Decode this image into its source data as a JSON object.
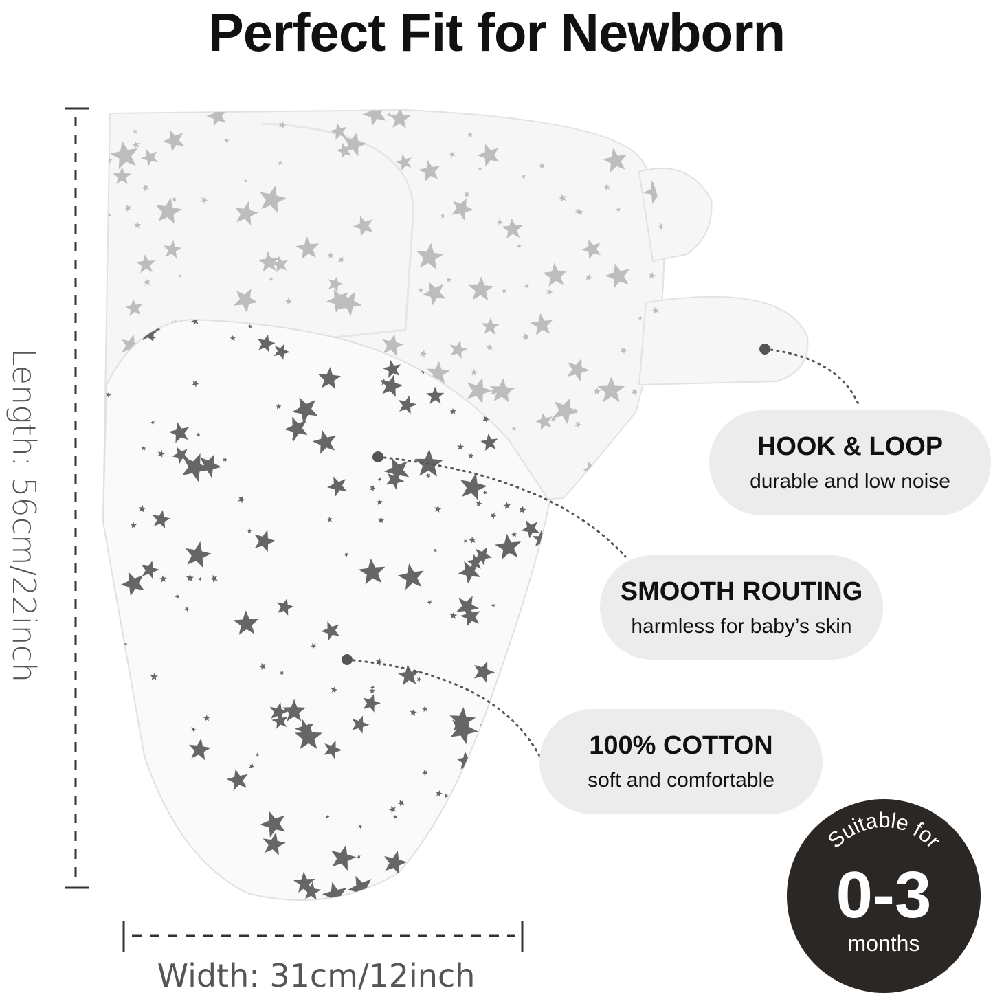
{
  "title": "Perfect Fit for Newborn",
  "dimensions": {
    "length": "Length: 56cm/22inch",
    "width": "Width: 31cm/12inch"
  },
  "callouts": [
    {
      "heading": "HOOK & LOOP",
      "sub": "durable and low noise"
    },
    {
      "heading": "SMOOTH ROUTING",
      "sub": "harmless for baby’s skin"
    },
    {
      "heading": "100% COTTON",
      "sub": "soft and comfortable"
    }
  ],
  "badge": {
    "top": "Suitable for",
    "range": "0-3",
    "unit": "months"
  },
  "colors": {
    "badge": "#2a2725",
    "pill": "#ececec",
    "star": "#666666",
    "fabric": "#f7f7f7"
  }
}
